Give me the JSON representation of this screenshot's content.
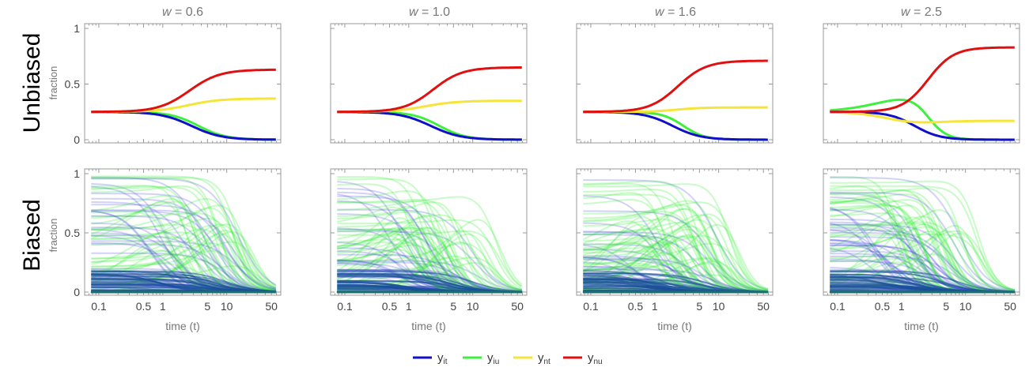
{
  "rows": [
    "Unbiased",
    "Biased"
  ],
  "ylabel": "fraction",
  "xlabel": "time (t)",
  "columns": [
    {
      "w_symbol": "w",
      "w_value": "= 0.6"
    },
    {
      "w_symbol": "w",
      "w_value": "= 1.0"
    },
    {
      "w_symbol": "w",
      "w_value": "= 1.6"
    },
    {
      "w_symbol": "w",
      "w_value": "= 2.5"
    }
  ],
  "x_ticks": [
    "0.1",
    "0.5",
    "1",
    "5",
    "10",
    "50"
  ],
  "x_tick_values": [
    0.1,
    0.5,
    1,
    5,
    10,
    50
  ],
  "y_ticks": [
    "0",
    "0.5",
    "1"
  ],
  "y_tick_values": [
    0,
    0.5,
    1
  ],
  "legend": [
    {
      "base": "y",
      "sub": "it",
      "color": "#1010c8"
    },
    {
      "base": "y",
      "sub": "iu",
      "color": "#3ef03e"
    },
    {
      "base": "y",
      "sub": "nt",
      "color": "#f5e53b"
    },
    {
      "base": "y",
      "sub": "nu",
      "color": "#e01010"
    }
  ],
  "chart_data": {
    "type": "line",
    "x_scale": "log",
    "xlim": [
      0.06,
      70
    ],
    "ylim": [
      0,
      1
    ],
    "unbiased": [
      {
        "w": 0.6,
        "series": [
          {
            "name": "y_it",
            "start": 0.25,
            "end": 0.0
          },
          {
            "name": "y_iu",
            "start": 0.25,
            "end": 0.0
          },
          {
            "name": "y_nt",
            "start": 0.25,
            "end": 0.37
          },
          {
            "name": "y_nu",
            "start": 0.25,
            "end": 0.63
          }
        ]
      },
      {
        "w": 1.0,
        "series": [
          {
            "name": "y_it",
            "start": 0.25,
            "end": 0.0
          },
          {
            "name": "y_iu",
            "start": 0.25,
            "end": 0.0
          },
          {
            "name": "y_nt",
            "start": 0.25,
            "end": 0.35
          },
          {
            "name": "y_nu",
            "start": 0.25,
            "end": 0.65
          }
        ]
      },
      {
        "w": 1.6,
        "series": [
          {
            "name": "y_it",
            "start": 0.25,
            "end": 0.0
          },
          {
            "name": "y_iu",
            "start": 0.25,
            "end": 0.0
          },
          {
            "name": "y_nt",
            "start": 0.25,
            "end": 0.29
          },
          {
            "name": "y_nu",
            "start": 0.25,
            "end": 0.71
          }
        ]
      },
      {
        "w": 2.5,
        "series": [
          {
            "name": "y_it",
            "start": 0.25,
            "end": 0.0
          },
          {
            "name": "y_iu",
            "start": 0.25,
            "peak": 0.4,
            "end": 0.0
          },
          {
            "name": "y_nt",
            "start": 0.25,
            "dip": 0.13,
            "end": 0.17
          },
          {
            "name": "y_nu",
            "start": 0.25,
            "end": 0.83
          }
        ]
      }
    ],
    "biased": "many semi-transparent trajectories of y_it (blue) and y_iu (green) starting at values between 0 and 1, all converging to 0 by t≈50"
  }
}
